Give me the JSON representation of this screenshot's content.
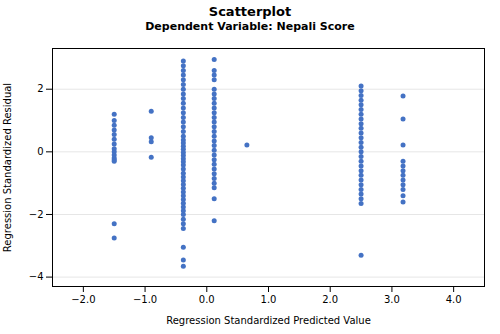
{
  "chart_data": {
    "type": "scatter",
    "title": "Scatterplot",
    "subtitle": "Dependent Variable: Nepali Score",
    "xlabel": "Regression Standardized Predicted Value",
    "ylabel": "Regression Standardized Residual",
    "xlim": [
      -2.5,
      4.5
    ],
    "ylim": [
      -4.3,
      3.3
    ],
    "xticks": [
      -2,
      -1,
      0,
      1,
      2,
      3,
      4
    ],
    "yticks": [
      -4,
      -2,
      0,
      2
    ],
    "grid": "y",
    "color": "#4472C4",
    "x": [
      -1.5,
      -1.5,
      -1.5,
      -1.5,
      -1.5,
      -1.5,
      -1.5,
      -1.5,
      -1.5,
      -1.5,
      -1.5,
      -1.5,
      -1.5,
      -1.5,
      -1.5,
      -0.9,
      -0.9,
      -0.9,
      -0.9,
      -0.38,
      -0.38,
      -0.38,
      -0.38,
      -0.38,
      -0.38,
      -0.38,
      -0.38,
      -0.38,
      -0.38,
      -0.38,
      -0.38,
      -0.38,
      -0.38,
      -0.38,
      -0.38,
      -0.38,
      -0.38,
      -0.38,
      -0.38,
      -0.38,
      -0.38,
      -0.38,
      -0.38,
      -0.38,
      -0.38,
      -0.38,
      -0.38,
      -0.38,
      -0.38,
      -0.38,
      -0.38,
      -0.38,
      -0.38,
      -0.38,
      -0.38,
      -0.38,
      -0.38,
      -0.38,
      -0.38,
      -0.38,
      -0.38,
      -0.38,
      -0.38,
      -0.38,
      0.12,
      0.12,
      0.12,
      0.12,
      0.12,
      0.12,
      0.12,
      0.12,
      0.12,
      0.12,
      0.12,
      0.12,
      0.12,
      0.12,
      0.12,
      0.12,
      0.12,
      0.12,
      0.12,
      0.12,
      0.12,
      0.12,
      0.12,
      0.12,
      0.12,
      0.12,
      0.12,
      0.12,
      0.65,
      2.5,
      2.5,
      2.5,
      2.5,
      2.5,
      2.5,
      2.5,
      2.5,
      2.5,
      2.5,
      2.5,
      2.5,
      2.5,
      2.5,
      2.5,
      2.5,
      2.5,
      2.5,
      2.5,
      2.5,
      2.5,
      2.5,
      2.5,
      2.5,
      2.5,
      2.5,
      2.5,
      3.18,
      3.18,
      3.18,
      3.18,
      3.18,
      3.18,
      3.18,
      3.18,
      3.18,
      3.18,
      3.18,
      3.18
    ],
    "values": [
      1.2,
      1.0,
      0.85,
      0.7,
      0.55,
      0.4,
      0.25,
      0.1,
      -0.0,
      -0.1,
      -0.2,
      -0.25,
      -0.3,
      -2.3,
      -2.75,
      1.3,
      0.45,
      0.32,
      -0.17,
      2.9,
      2.75,
      2.6,
      2.45,
      2.3,
      2.15,
      2.0,
      1.85,
      1.7,
      1.55,
      1.4,
      1.25,
      1.1,
      0.95,
      0.8,
      0.65,
      0.5,
      0.38,
      0.28,
      0.18,
      0.08,
      -0.02,
      -0.12,
      -0.22,
      -0.32,
      -0.42,
      -0.55,
      -0.68,
      -0.8,
      -0.92,
      -1.04,
      -1.16,
      -1.28,
      -1.4,
      -1.52,
      -1.64,
      -1.76,
      -1.88,
      -2.0,
      -2.15,
      -2.3,
      -2.45,
      -3.05,
      -3.45,
      -3.65,
      2.95,
      2.6,
      2.45,
      2.3,
      2.0,
      1.85,
      1.7,
      1.55,
      1.4,
      1.25,
      1.1,
      0.95,
      0.8,
      0.65,
      0.5,
      0.35,
      0.2,
      0.05,
      -0.1,
      -0.25,
      -0.4,
      -0.55,
      -0.7,
      -0.85,
      -1.0,
      -1.15,
      -1.5,
      -2.2,
      0.22,
      2.1,
      1.95,
      1.8,
      1.65,
      1.5,
      1.35,
      1.2,
      1.05,
      0.9,
      0.75,
      0.6,
      0.45,
      0.3,
      0.15,
      0.0,
      -0.15,
      -0.3,
      -0.45,
      -0.6,
      -0.75,
      -0.9,
      -1.05,
      -1.2,
      -1.35,
      -1.5,
      -1.65,
      -3.3,
      1.78,
      1.05,
      0.22,
      -0.3,
      -0.45,
      -0.6,
      -0.75,
      -0.9,
      -1.05,
      -1.2,
      -1.4,
      -1.6
    ]
  }
}
